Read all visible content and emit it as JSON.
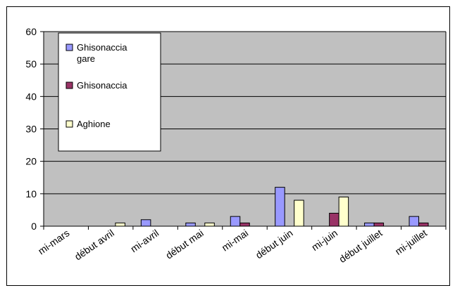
{
  "chart_data": {
    "type": "bar",
    "categories": [
      "mi-mars",
      "début avril",
      "mi-avril",
      "début mai",
      "mi-mai",
      "début juin",
      "mi-juin",
      "début juillet",
      "mi-juillet"
    ],
    "series": [
      {
        "name": "Ghisonaccia gare",
        "color": "#9999ff",
        "values": [
          0,
          0,
          2,
          1,
          3,
          12,
          0,
          1,
          3
        ]
      },
      {
        "name": "Ghisonaccia",
        "color": "#993366",
        "values": [
          0,
          0,
          0,
          0,
          1,
          0,
          4,
          1,
          1
        ]
      },
      {
        "name": "Aghione",
        "color": "#ffffcc",
        "values": [
          0,
          1,
          0,
          1,
          0,
          8,
          9,
          0,
          0
        ]
      }
    ],
    "ylim": [
      0,
      60
    ],
    "yticks": [
      0,
      10,
      20,
      30,
      40,
      50,
      60
    ],
    "grid": true,
    "plot_background": "#c0c0c0",
    "legend": {
      "placement": "top-left",
      "entries": [
        "Ghisonaccia\ngare",
        "Ghisonaccia",
        "Aghione"
      ]
    }
  }
}
